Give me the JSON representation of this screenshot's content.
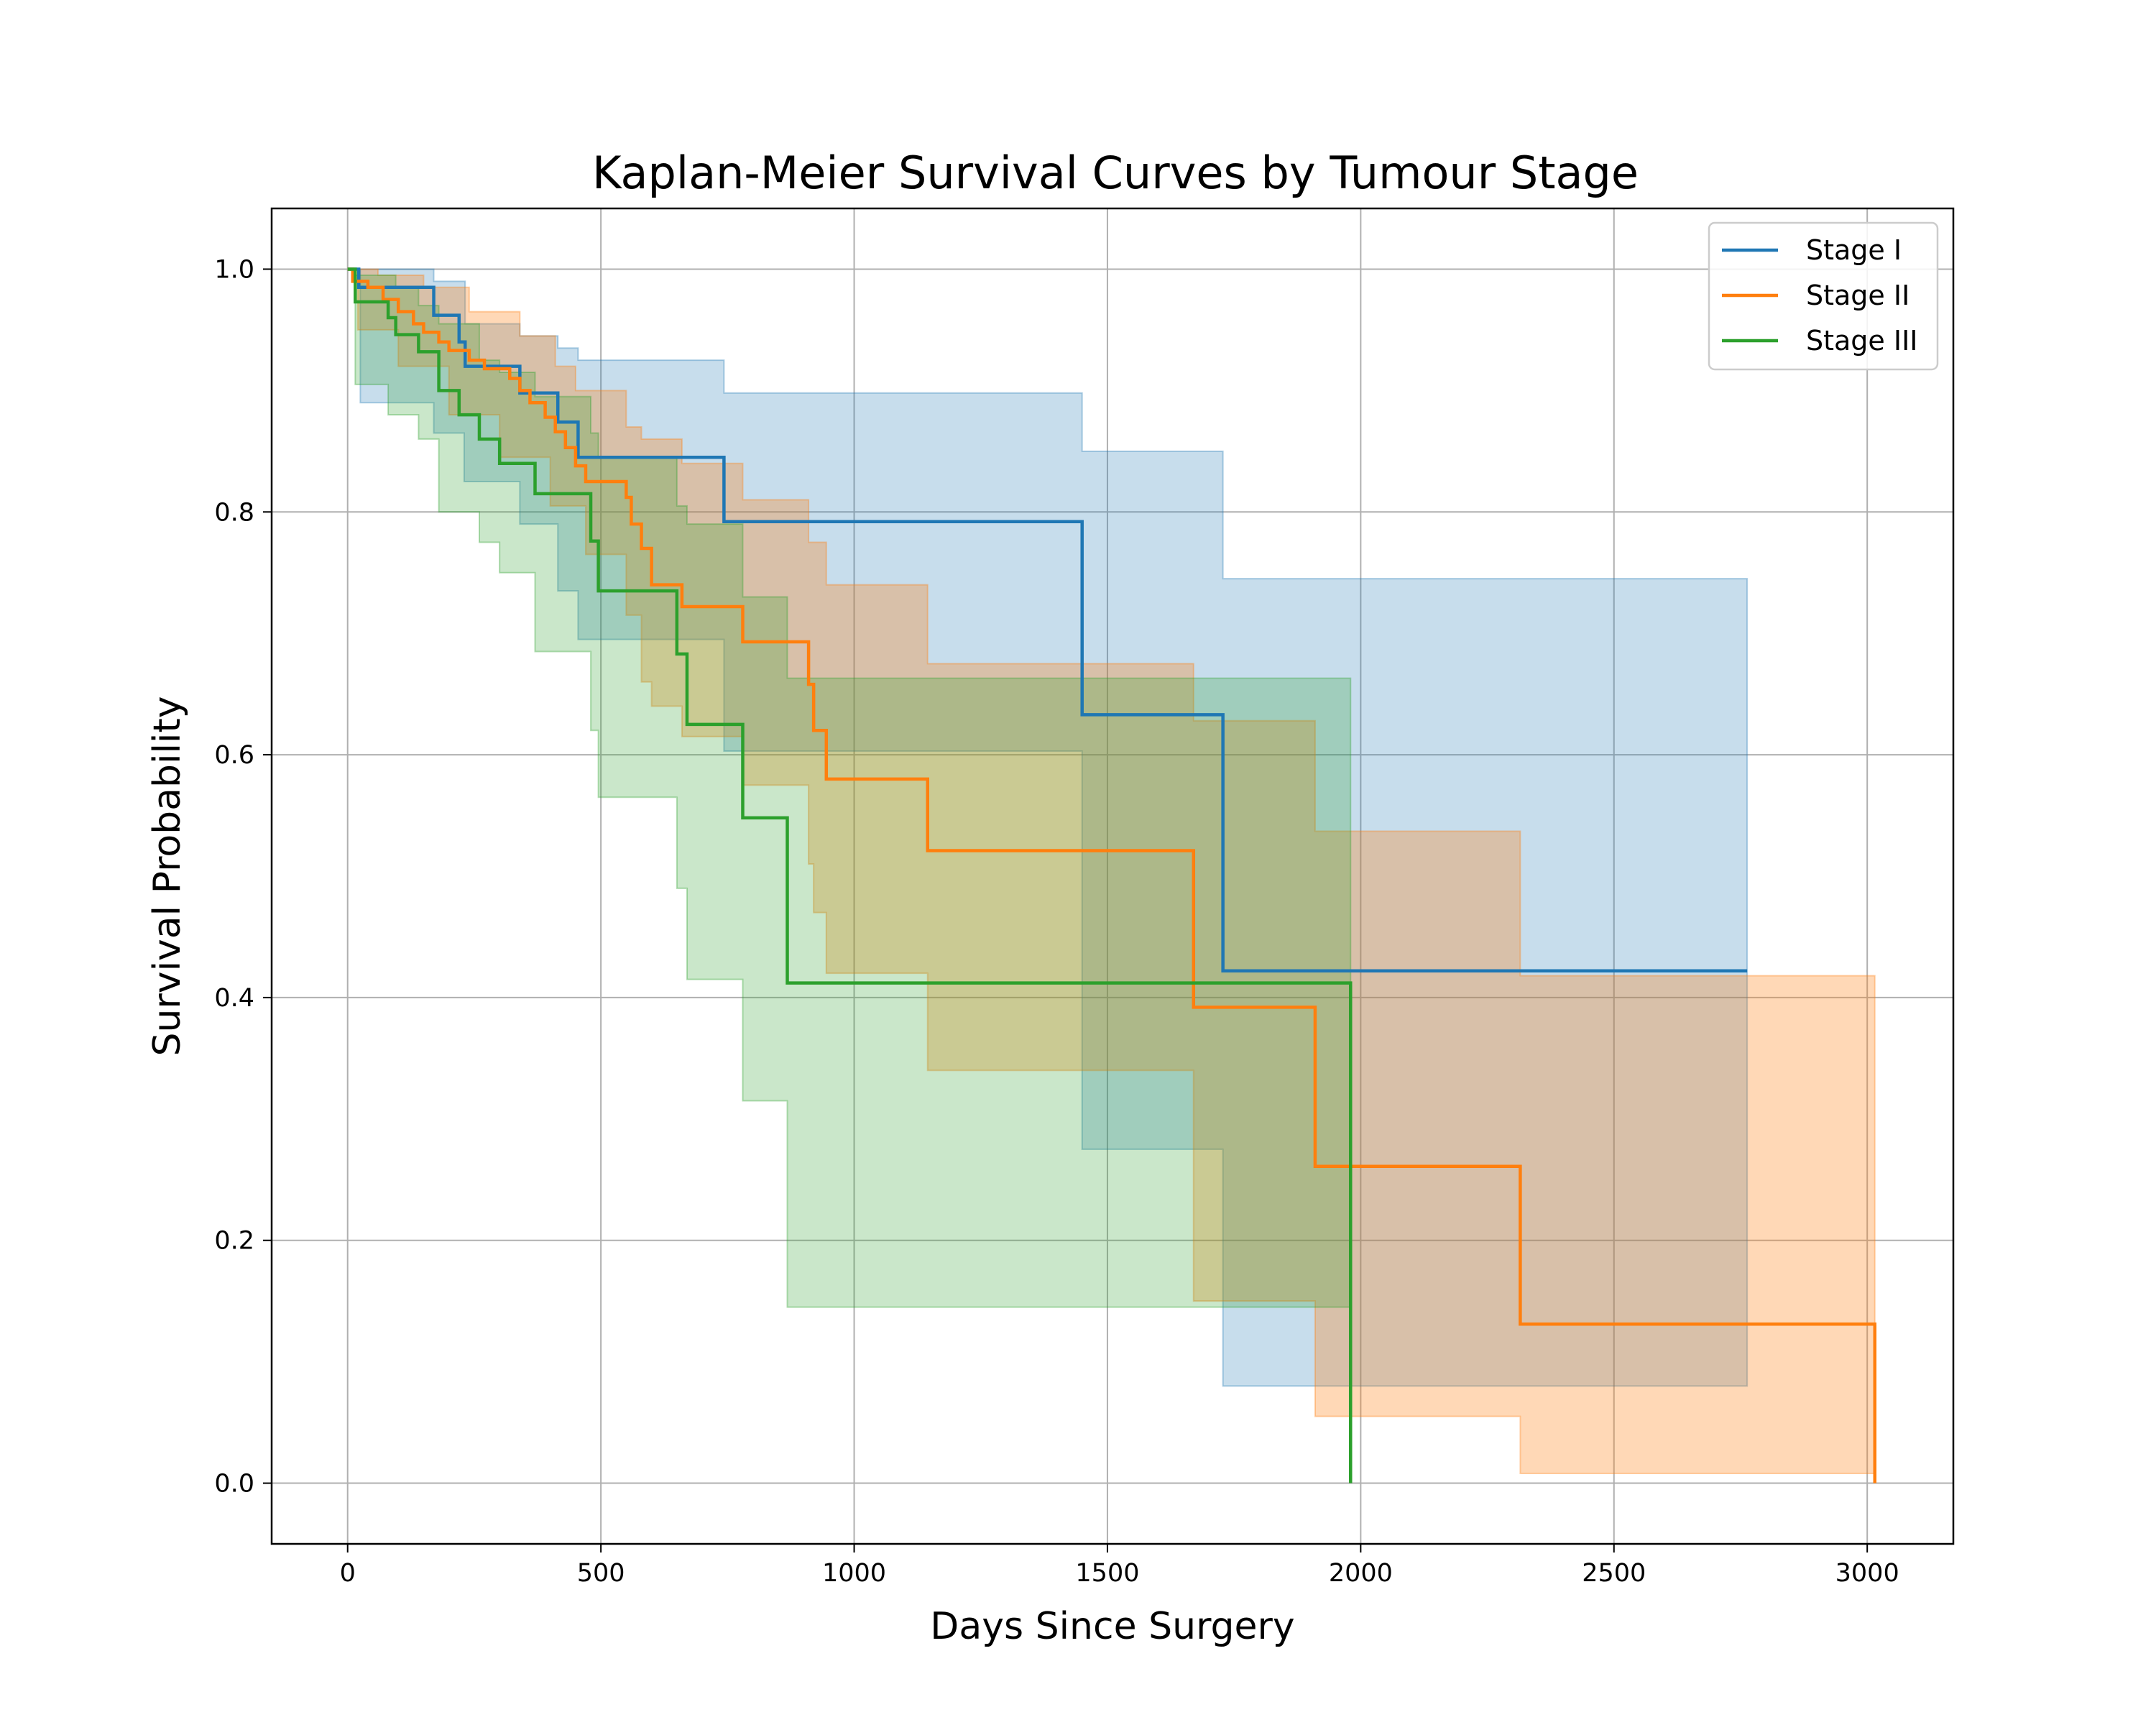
{
  "chart_data": {
    "type": "line",
    "step": true,
    "title": "Kaplan-Meier Survival Curves by Tumour Stage",
    "xlabel": "Days Since Surgery",
    "ylabel": "Survival Probability",
    "xlim": [
      -150,
      3170
    ],
    "ylim": [
      -0.05,
      1.05
    ],
    "x_ticks": [
      0,
      500,
      1000,
      1500,
      2000,
      2500,
      3000
    ],
    "x_tick_labels": [
      "0",
      "500",
      "1000",
      "1500",
      "2000",
      "2500",
      "3000"
    ],
    "y_ticks": [
      0.0,
      0.2,
      0.4,
      0.6,
      0.8,
      1.0
    ],
    "y_tick_labels": [
      "0.0",
      "0.2",
      "0.4",
      "0.6",
      "0.8",
      "1.0"
    ],
    "grid": true,
    "legend": {
      "position": "top-right",
      "entries": [
        "Stage I",
        "Stage II",
        "Stage III"
      ]
    },
    "series": [
      {
        "name": "Stage I",
        "color": "#1f77b4",
        "fill_opacity": 0.25,
        "points": [
          [
            0,
            1.0
          ],
          [
            22,
            0.985
          ],
          [
            170,
            0.962
          ],
          [
            220,
            0.94
          ],
          [
            232,
            0.92
          ],
          [
            340,
            0.898
          ],
          [
            415,
            0.874
          ],
          [
            455,
            0.845
          ],
          [
            743,
            0.792
          ],
          [
            1450,
            0.633
          ],
          [
            1728,
            0.422
          ],
          [
            2763,
            0.422
          ]
        ],
        "lower": [
          [
            0,
            1.0
          ],
          [
            25,
            0.89
          ],
          [
            170,
            0.865
          ],
          [
            230,
            0.825
          ],
          [
            340,
            0.79
          ],
          [
            415,
            0.735
          ],
          [
            455,
            0.695
          ],
          [
            743,
            0.603
          ],
          [
            1450,
            0.275
          ],
          [
            1728,
            0.08
          ],
          [
            2763,
            0.08
          ]
        ],
        "upper": [
          [
            0,
            1.0
          ],
          [
            25,
            1.0
          ],
          [
            170,
            0.99
          ],
          [
            232,
            0.955
          ],
          [
            340,
            0.945
          ],
          [
            415,
            0.935
          ],
          [
            455,
            0.925
          ],
          [
            743,
            0.898
          ],
          [
            1450,
            0.85
          ],
          [
            1728,
            0.745
          ],
          [
            2763,
            0.745
          ]
        ]
      },
      {
        "name": "Stage II",
        "color": "#ff7f0e",
        "fill_opacity": 0.3,
        "points": [
          [
            0,
            1.0
          ],
          [
            10,
            0.99
          ],
          [
            40,
            0.985
          ],
          [
            70,
            0.975
          ],
          [
            100,
            0.965
          ],
          [
            130,
            0.955
          ],
          [
            150,
            0.948
          ],
          [
            180,
            0.94
          ],
          [
            200,
            0.933
          ],
          [
            240,
            0.925
          ],
          [
            270,
            0.918
          ],
          [
            320,
            0.91
          ],
          [
            340,
            0.9
          ],
          [
            360,
            0.89
          ],
          [
            390,
            0.878
          ],
          [
            410,
            0.866
          ],
          [
            430,
            0.853
          ],
          [
            450,
            0.838
          ],
          [
            470,
            0.825
          ],
          [
            550,
            0.812
          ],
          [
            560,
            0.79
          ],
          [
            580,
            0.77
          ],
          [
            600,
            0.74
          ],
          [
            660,
            0.722
          ],
          [
            780,
            0.693
          ],
          [
            910,
            0.658
          ],
          [
            920,
            0.62
          ],
          [
            945,
            0.58
          ],
          [
            1145,
            0.521
          ],
          [
            1670,
            0.392
          ],
          [
            1910,
            0.261
          ],
          [
            2315,
            0.131
          ],
          [
            3015,
            0.131
          ],
          [
            3015,
            0.0
          ]
        ],
        "lower": [
          [
            0,
            1.0
          ],
          [
            20,
            0.95
          ],
          [
            100,
            0.92
          ],
          [
            200,
            0.88
          ],
          [
            300,
            0.845
          ],
          [
            400,
            0.805
          ],
          [
            470,
            0.765
          ],
          [
            550,
            0.715
          ],
          [
            580,
            0.66
          ],
          [
            600,
            0.64
          ],
          [
            660,
            0.615
          ],
          [
            780,
            0.575
          ],
          [
            910,
            0.51
          ],
          [
            920,
            0.47
          ],
          [
            945,
            0.42
          ],
          [
            1145,
            0.34
          ],
          [
            1670,
            0.15
          ],
          [
            1910,
            0.055
          ],
          [
            2315,
            0.008
          ],
          [
            3015,
            0.008
          ]
        ],
        "upper": [
          [
            0,
            1.0
          ],
          [
            60,
            0.995
          ],
          [
            150,
            0.985
          ],
          [
            240,
            0.965
          ],
          [
            340,
            0.945
          ],
          [
            410,
            0.92
          ],
          [
            450,
            0.9
          ],
          [
            550,
            0.87
          ],
          [
            580,
            0.86
          ],
          [
            660,
            0.84
          ],
          [
            780,
            0.81
          ],
          [
            910,
            0.775
          ],
          [
            945,
            0.74
          ],
          [
            1145,
            0.675
          ],
          [
            1670,
            0.628
          ],
          [
            1910,
            0.537
          ],
          [
            2315,
            0.418
          ],
          [
            3015,
            0.418
          ]
        ]
      },
      {
        "name": "Stage III",
        "color": "#2ca02c",
        "fill_opacity": 0.25,
        "points": [
          [
            0,
            1.0
          ],
          [
            15,
            0.973
          ],
          [
            80,
            0.96
          ],
          [
            95,
            0.946
          ],
          [
            140,
            0.932
          ],
          [
            180,
            0.9
          ],
          [
            220,
            0.88
          ],
          [
            260,
            0.86
          ],
          [
            300,
            0.84
          ],
          [
            370,
            0.815
          ],
          [
            480,
            0.776
          ],
          [
            495,
            0.735
          ],
          [
            650,
            0.683
          ],
          [
            670,
            0.625
          ],
          [
            780,
            0.548
          ],
          [
            868,
            0.412
          ],
          [
            1980,
            0.412
          ],
          [
            1980,
            0.0
          ]
        ],
        "lower": [
          [
            0,
            1.0
          ],
          [
            15,
            0.905
          ],
          [
            80,
            0.88
          ],
          [
            140,
            0.86
          ],
          [
            180,
            0.8
          ],
          [
            260,
            0.775
          ],
          [
            300,
            0.75
          ],
          [
            370,
            0.685
          ],
          [
            480,
            0.62
          ],
          [
            495,
            0.565
          ],
          [
            650,
            0.49
          ],
          [
            670,
            0.415
          ],
          [
            780,
            0.315
          ],
          [
            868,
            0.145
          ],
          [
            1980,
            0.145
          ]
        ],
        "upper": [
          [
            0,
            1.0
          ],
          [
            15,
            0.995
          ],
          [
            95,
            0.985
          ],
          [
            140,
            0.97
          ],
          [
            180,
            0.955
          ],
          [
            260,
            0.925
          ],
          [
            300,
            0.915
          ],
          [
            370,
            0.895
          ],
          [
            480,
            0.865
          ],
          [
            495,
            0.845
          ],
          [
            650,
            0.805
          ],
          [
            670,
            0.79
          ],
          [
            780,
            0.73
          ],
          [
            868,
            0.663
          ],
          [
            1980,
            0.663
          ]
        ]
      }
    ]
  }
}
